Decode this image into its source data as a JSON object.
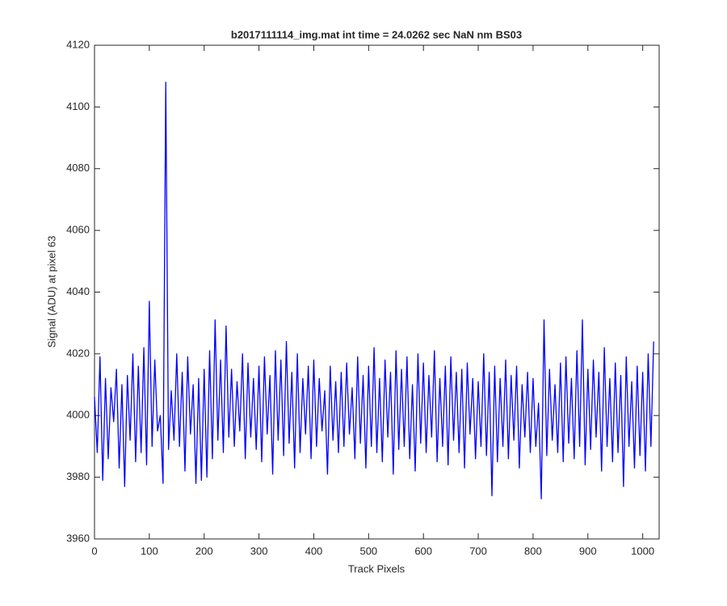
{
  "chart_data": {
    "type": "line",
    "title": "b2017111114_img.mat int time = 24.0262 sec  NaN nm BS03",
    "x_label": "Track Pixels",
    "y_label": "Signal (ADU) at pixel 63",
    "xlim": [
      0,
      1030
    ],
    "ylim": [
      3960,
      4120
    ],
    "xticks": [
      0,
      100,
      200,
      300,
      400,
      500,
      600,
      700,
      800,
      900,
      1000
    ],
    "yticks": [
      3960,
      3980,
      4000,
      4020,
      4040,
      4060,
      4080,
      4100,
      4120
    ],
    "grid": false,
    "series": [
      {
        "color": "#0000ff",
        "x": [
          0,
          5,
          10,
          15,
          20,
          25,
          30,
          35,
          40,
          45,
          50,
          55,
          60,
          65,
          70,
          75,
          80,
          85,
          90,
          95,
          100,
          105,
          110,
          115,
          120,
          125,
          130,
          135,
          140,
          145,
          150,
          155,
          160,
          165,
          170,
          175,
          180,
          185,
          190,
          195,
          200,
          205,
          210,
          215,
          220,
          225,
          230,
          235,
          240,
          245,
          250,
          255,
          260,
          265,
          270,
          275,
          280,
          285,
          290,
          295,
          300,
          305,
          310,
          315,
          320,
          325,
          330,
          335,
          340,
          345,
          350,
          355,
          360,
          365,
          370,
          375,
          380,
          385,
          390,
          395,
          400,
          405,
          410,
          415,
          420,
          425,
          430,
          435,
          440,
          445,
          450,
          455,
          460,
          465,
          470,
          475,
          480,
          485,
          490,
          495,
          500,
          505,
          510,
          515,
          520,
          525,
          530,
          535,
          540,
          545,
          550,
          555,
          560,
          565,
          570,
          575,
          580,
          585,
          590,
          595,
          600,
          605,
          610,
          615,
          620,
          625,
          630,
          635,
          640,
          645,
          650,
          655,
          660,
          665,
          670,
          675,
          680,
          685,
          690,
          695,
          700,
          705,
          710,
          715,
          720,
          725,
          730,
          735,
          740,
          745,
          750,
          755,
          760,
          765,
          770,
          775,
          780,
          785,
          790,
          795,
          800,
          805,
          810,
          815,
          820,
          825,
          830,
          835,
          840,
          845,
          850,
          855,
          860,
          865,
          870,
          875,
          880,
          885,
          890,
          895,
          900,
          905,
          910,
          915,
          920,
          925,
          930,
          935,
          940,
          945,
          950,
          955,
          960,
          965,
          970,
          975,
          980,
          985,
          990,
          995,
          1000,
          1005,
          1010,
          1015,
          1020
        ],
        "values": [
          4006,
          3988,
          4019,
          3979,
          4012,
          3986,
          4009,
          3998,
          4015,
          3983,
          4010,
          3977,
          4013,
          3992,
          4020,
          3985,
          4016,
          3988,
          4022,
          3984,
          4037,
          3990,
          4018,
          3995,
          4000,
          3978,
          4108,
          3989,
          4008,
          3992,
          4020,
          3990,
          4014,
          3982,
          4019,
          3994,
          4010,
          3978,
          4012,
          3979,
          4015,
          3980,
          4021,
          3986,
          4031,
          3992,
          4018,
          3988,
          4029,
          3993,
          4015,
          3990,
          4011,
          3995,
          4020,
          3986,
          4017,
          3993,
          4012,
          3989,
          4016,
          3985,
          4019,
          3994,
          4013,
          3981,
          4021,
          3992,
          4018,
          3987,
          4024,
          3991,
          4014,
          3983,
          4020,
          3988,
          4012,
          3994,
          4016,
          3986,
          4018,
          3990,
          4012,
          3995,
          4008,
          3981,
          4016,
          3992,
          4011,
          3988,
          4014,
          3990,
          4017,
          3994,
          4009,
          3986,
          4019,
          3991,
          4013,
          3983,
          4016,
          3990,
          4022,
          3988,
          4012,
          3985,
          4018,
          3993,
          4014,
          3981,
          4021,
          3989,
          4015,
          3990,
          4019,
          3986,
          4010,
          3982,
          4020,
          3991,
          4017,
          3988,
          4013,
          3993,
          4021,
          3985,
          4012,
          3990,
          4016,
          3984,
          4019,
          3992,
          4014,
          3988,
          4015,
          3983,
          4017,
          3994,
          4012,
          3986,
          4011,
          3990,
          4020,
          3987,
          4014,
          3974,
          4016,
          3985,
          4012,
          3990,
          4018,
          3986,
          4013,
          3992,
          4016,
          3983,
          4010,
          3993,
          4014,
          3988,
          4012,
          3990,
          4004,
          3973,
          4031,
          3987,
          4015,
          3992,
          4010,
          3988,
          4017,
          3985,
          4019,
          3991,
          4012,
          3986,
          4021,
          3990,
          4031,
          3984,
          4015,
          3989,
          4018,
          3993,
          4014,
          3982,
          4022,
          3990,
          4012,
          3985,
          4017,
          3988,
          4013,
          3977,
          4019,
          3990,
          4011,
          3983,
          4016,
          3987,
          4014,
          3982,
          4020,
          3990,
          4024
        ]
      }
    ]
  }
}
